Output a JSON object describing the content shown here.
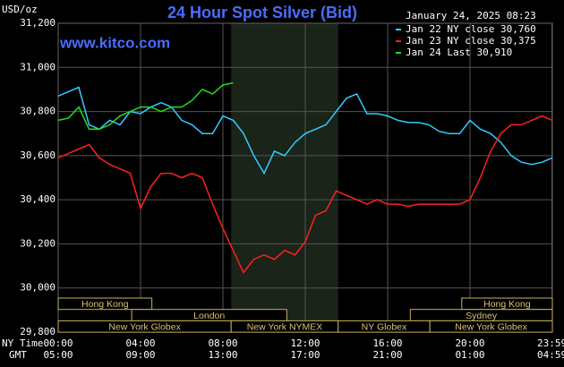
{
  "chart_data": {
    "type": "line",
    "title": "24 Hour Spot Silver (Bid)",
    "timestamp": "January 24, 2025 08:23",
    "website": "www.kitco.com",
    "y_label": "USD/oz",
    "x_label": "NY Time",
    "x2_label": "GMT",
    "x": [
      0,
      0.5,
      1,
      1.5,
      2,
      2.5,
      3,
      3.5,
      4,
      4.5,
      5,
      5.5,
      6,
      6.5,
      7,
      7.5,
      8,
      8.5,
      9,
      9.5,
      10,
      10.5,
      11,
      11.5,
      12,
      12.5,
      13,
      13.5,
      14,
      14.5,
      15,
      15.5,
      16,
      16.5,
      17,
      17.5,
      18,
      18.5,
      19,
      19.5,
      20,
      20.5,
      21,
      21.5,
      22,
      22.5,
      23,
      23.5,
      24
    ],
    "series": [
      {
        "name": "Jan 22 NY close 30,760",
        "color": "#33ccff",
        "values": [
          30.87,
          30.89,
          30.91,
          30.74,
          30.72,
          30.76,
          30.74,
          30.8,
          30.79,
          30.82,
          30.84,
          30.82,
          30.76,
          30.74,
          30.7,
          30.7,
          30.78,
          30.76,
          30.7,
          30.6,
          30.52,
          30.62,
          30.6,
          30.66,
          30.7,
          30.72,
          30.74,
          30.8,
          30.86,
          30.88,
          30.79,
          30.79,
          30.78,
          30.76,
          30.75,
          30.75,
          30.74,
          30.71,
          30.7,
          30.7,
          30.76,
          30.72,
          30.7,
          30.66,
          30.6,
          30.57,
          30.56,
          30.57,
          30.59
        ]
      },
      {
        "name": "Jan 23 NY close 30,375",
        "color": "#ff2020",
        "values": [
          30.59,
          30.61,
          30.63,
          30.65,
          30.59,
          30.56,
          30.54,
          30.52,
          30.36,
          30.46,
          30.52,
          30.52,
          30.5,
          30.52,
          30.5,
          30.38,
          30.27,
          30.17,
          30.07,
          30.13,
          30.15,
          30.13,
          30.17,
          30.15,
          30.21,
          30.33,
          30.35,
          30.44,
          30.42,
          30.4,
          30.38,
          30.4,
          30.38,
          30.38,
          30.37,
          30.38,
          30.38,
          30.38,
          30.38,
          30.38,
          30.4,
          30.5,
          30.62,
          30.7,
          30.74,
          30.74,
          30.76,
          30.78,
          30.76
        ]
      },
      {
        "name": "Jan 24 Last 30,910",
        "color": "#22dd22",
        "values": [
          30.76,
          30.77,
          30.82,
          30.72,
          30.72,
          30.74,
          30.78,
          30.8,
          30.82,
          30.82,
          30.8,
          30.82,
          30.82,
          30.85,
          30.9,
          30.88,
          30.92,
          30.93,
          null,
          null,
          null,
          null,
          null,
          null,
          null,
          null,
          null,
          null,
          null,
          null,
          null,
          null,
          null,
          null,
          null,
          null,
          null,
          null,
          null,
          null,
          null,
          null,
          null,
          null,
          null,
          null,
          null,
          null,
          null
        ]
      }
    ],
    "xlim": [
      0,
      24
    ],
    "xticks": [
      {
        "value": 0,
        "label": "00:00"
      },
      {
        "value": 4,
        "label": "04:00"
      },
      {
        "value": 8,
        "label": "08:00"
      },
      {
        "value": 12,
        "label": "12:00"
      },
      {
        "value": 16,
        "label": "16:00"
      },
      {
        "value": 20,
        "label": "20:00"
      },
      {
        "value": 23.98,
        "label": "23:59"
      }
    ],
    "x2tick_labels": [
      "05:00",
      "09:00",
      "13:00",
      "17:00",
      "21:00",
      "01:00",
      "04:59"
    ],
    "ylim": [
      29.8,
      31.2
    ],
    "yticks": [
      {
        "value": 29.8,
        "label": "29,800"
      },
      {
        "value": 30.0,
        "label": "30,000"
      },
      {
        "value": 30.2,
        "label": "30,200"
      },
      {
        "value": 30.4,
        "label": "30,400"
      },
      {
        "value": 30.6,
        "label": "30,600"
      },
      {
        "value": 30.8,
        "label": "30,800"
      },
      {
        "value": 31.0,
        "label": "31,000"
      },
      {
        "value": 31.2,
        "label": "31,200"
      }
    ],
    "grid": true,
    "sessions": [
      {
        "label": "Hong Kong",
        "start": 0,
        "end": 4.55
      },
      {
        "label": "Hong Kong",
        "start": 19.6,
        "end": 24
      },
      {
        "label": "London",
        "start": 3.57,
        "end": 11.1
      },
      {
        "label": "Sydney",
        "start": 17.1,
        "end": 24
      },
      {
        "label": "New York Globex",
        "start": 0,
        "end": 8.4
      },
      {
        "label": "New York NYMEX",
        "start": 8.4,
        "end": 13.6,
        "shaded": true
      },
      {
        "label": "NY Globex",
        "start": 13.6,
        "end": 18.05
      },
      {
        "label": "New York Globex",
        "start": 18.05,
        "end": 24
      }
    ]
  }
}
